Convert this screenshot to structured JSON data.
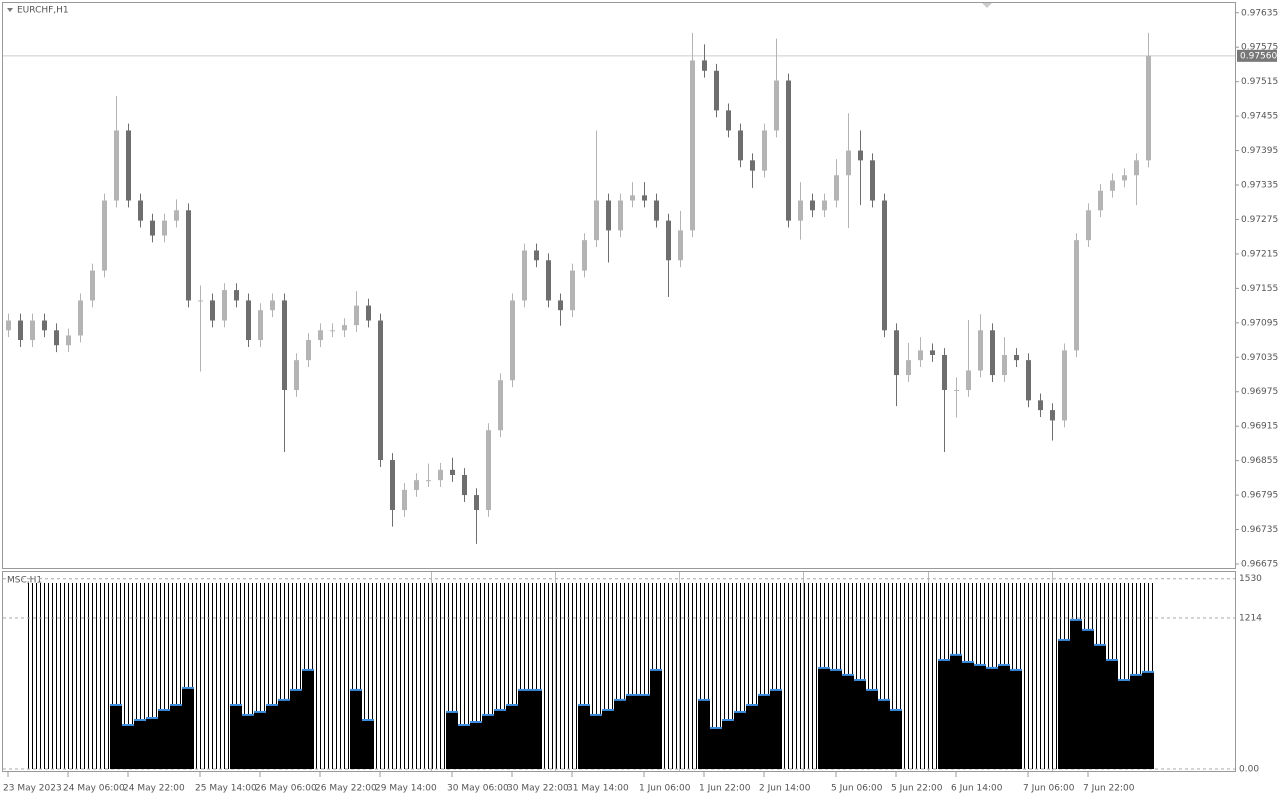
{
  "chart_data": [
    {
      "type": "candlestick",
      "title": "EURCHF,H1",
      "categories": [
        "23 May 2023",
        null,
        null,
        null,
        null,
        "24 May 06:00",
        null,
        null,
        null,
        null,
        "24 May 22:00",
        null,
        null,
        null,
        null,
        null,
        "25 May 14:00",
        null,
        null,
        null,
        null,
        "26 May 06:00",
        null,
        null,
        null,
        null,
        "26 May 22:00",
        null,
        null,
        null,
        null,
        "29 May 14:00",
        null,
        null,
        null,
        null,
        null,
        "30 May 06:00",
        null,
        null,
        null,
        null,
        "30 May 22:00",
        null,
        null,
        null,
        null,
        "31 May 14:00",
        null,
        null,
        null,
        null,
        null,
        "1 Jun 06:00",
        null,
        null,
        null,
        null,
        "1 Jun 22:00",
        null,
        null,
        null,
        null,
        "2 Jun 14:00",
        null,
        null,
        null,
        null,
        null,
        "5 Jun 06:00",
        null,
        null,
        null,
        null,
        "5 Jun 22:00",
        null,
        null,
        null,
        null,
        "6 Jun 14:00",
        null,
        null,
        null,
        null,
        null,
        "7 Jun 06:00",
        null,
        null,
        null,
        null,
        "7 Jun 22:00",
        null,
        null,
        null,
        null,
        null
      ],
      "open": [
        0.97082,
        0.97099,
        0.97065,
        0.97099,
        0.97082,
        0.97056,
        0.97073,
        0.97134,
        0.97186,
        0.97308,
        0.9743,
        0.97308,
        0.97273,
        0.97247,
        0.97273,
        0.97291,
        0.97134,
        0.97134,
        0.97099,
        0.97152,
        0.97134,
        0.97065,
        0.97117,
        0.97134,
        0.96978,
        0.9703,
        0.97065,
        0.97082,
        0.97082,
        0.97091,
        0.97125,
        0.97099,
        0.96856,
        0.96769,
        0.96804,
        0.96821,
        0.96821,
        0.96839,
        0.9683,
        0.96795,
        0.96769,
        0.96908,
        0.96995,
        0.97134,
        0.97221,
        0.97204,
        0.97134,
        0.97117,
        0.97186,
        0.97239,
        0.97308,
        0.97256,
        0.97308,
        0.97317,
        0.97308,
        0.97273,
        0.97204,
        0.97256,
        0.97552,
        0.97534,
        0.97465,
        0.9743,
        0.97378,
        0.9736,
        0.9743,
        0.97517,
        0.97273,
        0.97308,
        0.97291,
        0.97308,
        0.97352,
        0.97395,
        0.97378,
        0.97308,
        0.97082,
        0.97004,
        0.9703,
        0.97047,
        0.97039,
        0.96978,
        0.96978,
        0.97012,
        0.97082,
        0.97004,
        0.97039,
        0.9703,
        0.9696,
        0.96943,
        0.96925,
        0.97047,
        0.97239,
        0.97291,
        0.97325,
        0.97343,
        0.97352,
        0.97378
      ],
      "high": [
        0.97111,
        0.97111,
        0.97111,
        0.97111,
        0.97094,
        0.97085,
        0.97146,
        0.97198,
        0.9732,
        0.9749,
        0.97442,
        0.9732,
        0.97285,
        0.97285,
        0.9731,
        0.97303,
        0.9716,
        0.97146,
        0.97164,
        0.97164,
        0.97146,
        0.97129,
        0.97146,
        0.97146,
        0.97042,
        0.97077,
        0.97094,
        0.97094,
        0.97103,
        0.9715,
        0.97137,
        0.97111,
        0.96868,
        0.96816,
        0.96833,
        0.9685,
        0.96851,
        0.9686,
        0.96842,
        0.96807,
        0.9692,
        0.97007,
        0.97146,
        0.97233,
        0.97233,
        0.97216,
        0.97146,
        0.97198,
        0.97251,
        0.9743,
        0.9732,
        0.9732,
        0.9734,
        0.9734,
        0.9732,
        0.97285,
        0.9729,
        0.976,
        0.9758,
        0.97546,
        0.97477,
        0.97442,
        0.9739,
        0.97442,
        0.9759,
        0.97529,
        0.9734,
        0.9732,
        0.9732,
        0.9738,
        0.9746,
        0.9743,
        0.9739,
        0.9732,
        0.97094,
        0.9706,
        0.9707,
        0.97059,
        0.97051,
        0.97,
        0.971,
        0.9711,
        0.97094,
        0.9707,
        0.97051,
        0.97042,
        0.96972,
        0.96955,
        0.97059,
        0.97251,
        0.97303,
        0.97337,
        0.97355,
        0.97364,
        0.9739,
        0.976
      ],
      "low": [
        0.9707,
        0.97053,
        0.97053,
        0.9707,
        0.97044,
        0.97044,
        0.97061,
        0.97122,
        0.97174,
        0.97296,
        0.97296,
        0.97261,
        0.97235,
        0.97235,
        0.97261,
        0.97122,
        0.9701,
        0.97087,
        0.97087,
        0.97122,
        0.97053,
        0.97053,
        0.97105,
        0.9687,
        0.96966,
        0.97018,
        0.97053,
        0.9707,
        0.9707,
        0.97079,
        0.97087,
        0.96844,
        0.9674,
        0.96757,
        0.96792,
        0.96809,
        0.96809,
        0.96818,
        0.96783,
        0.9671,
        0.96757,
        0.96896,
        0.96983,
        0.97122,
        0.97192,
        0.97122,
        0.9709,
        0.97105,
        0.97174,
        0.97227,
        0.972,
        0.97244,
        0.97296,
        0.97296,
        0.97261,
        0.9714,
        0.97192,
        0.97244,
        0.97522,
        0.97453,
        0.97418,
        0.97366,
        0.9733,
        0.97348,
        0.97418,
        0.97261,
        0.9724,
        0.97279,
        0.97279,
        0.97296,
        0.9726,
        0.973,
        0.97296,
        0.9707,
        0.9695,
        0.96992,
        0.97018,
        0.97027,
        0.9687,
        0.9693,
        0.96966,
        0.97,
        0.96992,
        0.96992,
        0.97018,
        0.96948,
        0.96931,
        0.9689,
        0.96913,
        0.97035,
        0.97227,
        0.97279,
        0.97313,
        0.97331,
        0.973,
        0.97366
      ],
      "close": [
        0.97099,
        0.97065,
        0.97099,
        0.97082,
        0.97056,
        0.97073,
        0.97134,
        0.97186,
        0.97308,
        0.9743,
        0.97308,
        0.97273,
        0.97247,
        0.97273,
        0.97291,
        0.97134,
        0.97134,
        0.97099,
        0.97152,
        0.97134,
        0.97065,
        0.97117,
        0.97134,
        0.96978,
        0.9703,
        0.97065,
        0.97082,
        0.97082,
        0.97091,
        0.97125,
        0.97099,
        0.96856,
        0.96769,
        0.96804,
        0.96821,
        0.96821,
        0.96839,
        0.9683,
        0.96795,
        0.96769,
        0.96908,
        0.96995,
        0.97134,
        0.97221,
        0.97204,
        0.97134,
        0.97117,
        0.97186,
        0.97239,
        0.97308,
        0.97256,
        0.97308,
        0.97317,
        0.97308,
        0.97273,
        0.97204,
        0.97256,
        0.97552,
        0.97534,
        0.97465,
        0.9743,
        0.97378,
        0.9736,
        0.9743,
        0.97517,
        0.97273,
        0.97308,
        0.97291,
        0.97308,
        0.97352,
        0.97395,
        0.97378,
        0.97308,
        0.97082,
        0.97004,
        0.9703,
        0.97047,
        0.97039,
        0.96978,
        0.96978,
        0.97012,
        0.97082,
        0.97004,
        0.97039,
        0.9703,
        0.9696,
        0.96943,
        0.96925,
        0.97047,
        0.97239,
        0.97291,
        0.97325,
        0.97343,
        0.97352,
        0.97378,
        0.9756
      ],
      "up_color": "#b4b4b4",
      "down_color": "#6e6e6e",
      "ylim": [
        0.96668,
        0.97652
      ],
      "yticks": [
        0.97635,
        0.97575,
        0.97515,
        0.97455,
        0.97395,
        0.97335,
        0.97275,
        0.97215,
        0.97155,
        0.97095,
        0.97035,
        0.96975,
        0.96915,
        0.96855,
        0.96795,
        0.96735,
        0.96675
      ],
      "price_line": {
        "value": 0.9756,
        "label": "0.97560"
      }
    },
    {
      "type": "bar",
      "title": "MSC,H1",
      "color": "#000000",
      "edge_color": "#3d8ee0",
      "values": [
        null,
        null,
        null,
        null,
        null,
        null,
        null,
        null,
        null,
        515,
        354,
        394,
        410,
        475,
        515,
        652,
        null,
        null,
        null,
        515,
        435,
        459,
        515,
        556,
        636,
        797,
        null,
        null,
        null,
        636,
        394,
        null,
        null,
        null,
        null,
        null,
        null,
        459,
        354,
        378,
        435,
        475,
        515,
        636,
        636,
        null,
        null,
        null,
        515,
        435,
        475,
        556,
        596,
        596,
        797,
        null,
        null,
        null,
        556,
        330,
        394,
        459,
        515,
        596,
        636,
        null,
        null,
        null,
        813,
        797,
        757,
        716,
        636,
        556,
        475,
        null,
        null,
        null,
        877,
        918,
        861,
        837,
        813,
        837,
        797,
        null,
        null,
        null,
        1038,
        1199,
        1119,
        998,
        877,
        716,
        757,
        781
      ],
      "ylim": [
        0,
        1560
      ],
      "yticks": [
        1530,
        1214,
        {
          "value": 0,
          "label": "0.00"
        }
      ]
    }
  ]
}
